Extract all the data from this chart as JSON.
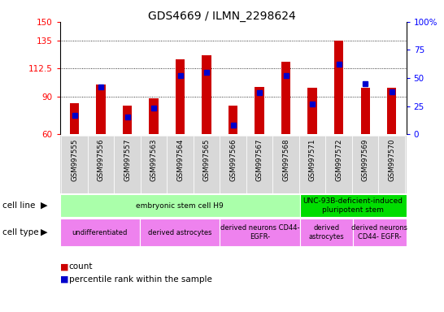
{
  "title": "GDS4669 / ILMN_2298624",
  "samples": [
    "GSM997555",
    "GSM997556",
    "GSM997557",
    "GSM997563",
    "GSM997564",
    "GSM997565",
    "GSM997566",
    "GSM997567",
    "GSM997568",
    "GSM997571",
    "GSM997572",
    "GSM997569",
    "GSM997570"
  ],
  "counts": [
    85,
    100,
    83,
    89,
    120,
    123,
    83,
    98,
    118,
    97,
    135,
    97,
    97
  ],
  "percentiles": [
    17,
    42,
    15,
    23,
    52,
    55,
    8,
    37,
    52,
    27,
    62,
    45,
    38
  ],
  "ylim_left": [
    60,
    150
  ],
  "ylim_right": [
    0,
    100
  ],
  "yticks_left": [
    60,
    90,
    112.5,
    135,
    150
  ],
  "ytick_labels_left": [
    "60",
    "90",
    "112.5",
    "135",
    "150"
  ],
  "yticks_right": [
    0,
    25,
    50,
    75,
    100
  ],
  "ytick_labels_right": [
    "0",
    "25",
    "50",
    "75",
    "100%"
  ],
  "gridlines": [
    90,
    112.5,
    135
  ],
  "bar_color": "#cc0000",
  "dot_color": "#0000cc",
  "cell_line_groups": [
    {
      "label": "embryonic stem cell H9",
      "start": 0,
      "end": 9,
      "color": "#aaffaa"
    },
    {
      "label": "UNC-93B-deficient-induced\npluripotent stem",
      "start": 9,
      "end": 13,
      "color": "#00dd00"
    }
  ],
  "cell_type_groups": [
    {
      "label": "undifferentiated",
      "start": 0,
      "end": 3,
      "color": "#ee82ee"
    },
    {
      "label": "derived astrocytes",
      "start": 3,
      "end": 6,
      "color": "#ee82ee"
    },
    {
      "label": "derived neurons CD44-\nEGFR-",
      "start": 6,
      "end": 9,
      "color": "#ee82ee"
    },
    {
      "label": "derived\nastrocytes",
      "start": 9,
      "end": 11,
      "color": "#ee82ee"
    },
    {
      "label": "derived neurons\nCD44- EGFR-",
      "start": 11,
      "end": 13,
      "color": "#ee82ee"
    }
  ],
  "tick_fontsize": 7.5,
  "title_fontsize": 10,
  "bar_width": 0.35
}
